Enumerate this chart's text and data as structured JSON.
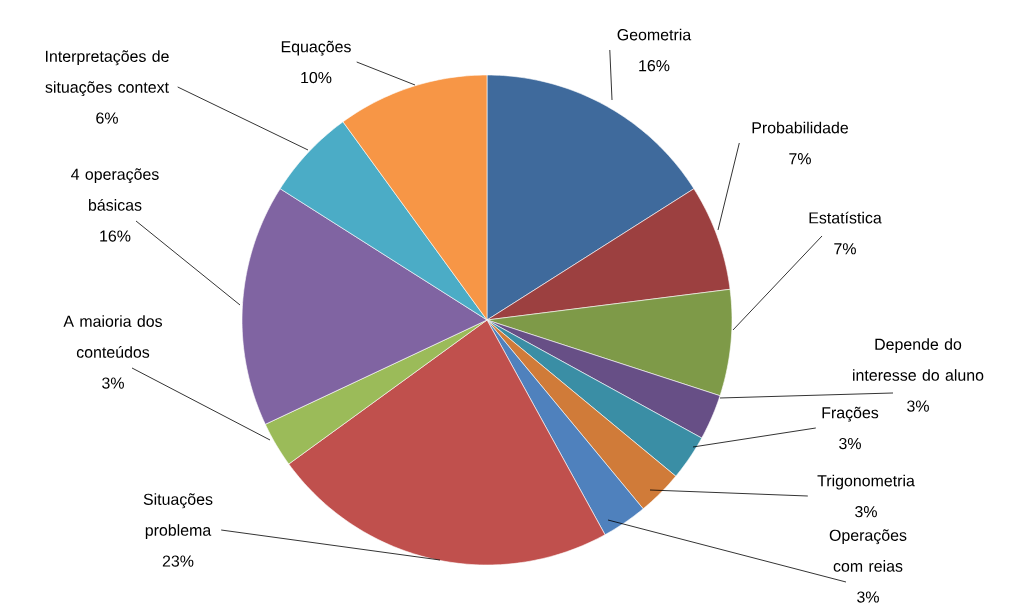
{
  "chart_data": {
    "type": "pie",
    "categories": [
      "Geometria",
      "Probabilidade",
      "Estatística",
      "Depende do interesse do aluno",
      "Frações",
      "Trigonometria",
      "Operações com reias",
      "Situações problema",
      "A maioria dos conteúdos",
      "4 operações básicas",
      "Interpretações de situações context",
      "Equações"
    ],
    "values": [
      16,
      7,
      7,
      3,
      3,
      3,
      3,
      23,
      3,
      16,
      6,
      10
    ],
    "value_labels": [
      "16%",
      "7%",
      "7%",
      "3%",
      "3%",
      "3%",
      "3%",
      "23%",
      "3%",
      "16%",
      "6%",
      "10%"
    ],
    "colors": [
      "#3f6a9c",
      "#9c4040",
      "#7e9a48",
      "#674f86",
      "#3a8ea5",
      "#d07b39",
      "#4f81bd",
      "#c0504d",
      "#9bbb59",
      "#8064a2",
      "#4bacc6",
      "#f79646"
    ]
  }
}
